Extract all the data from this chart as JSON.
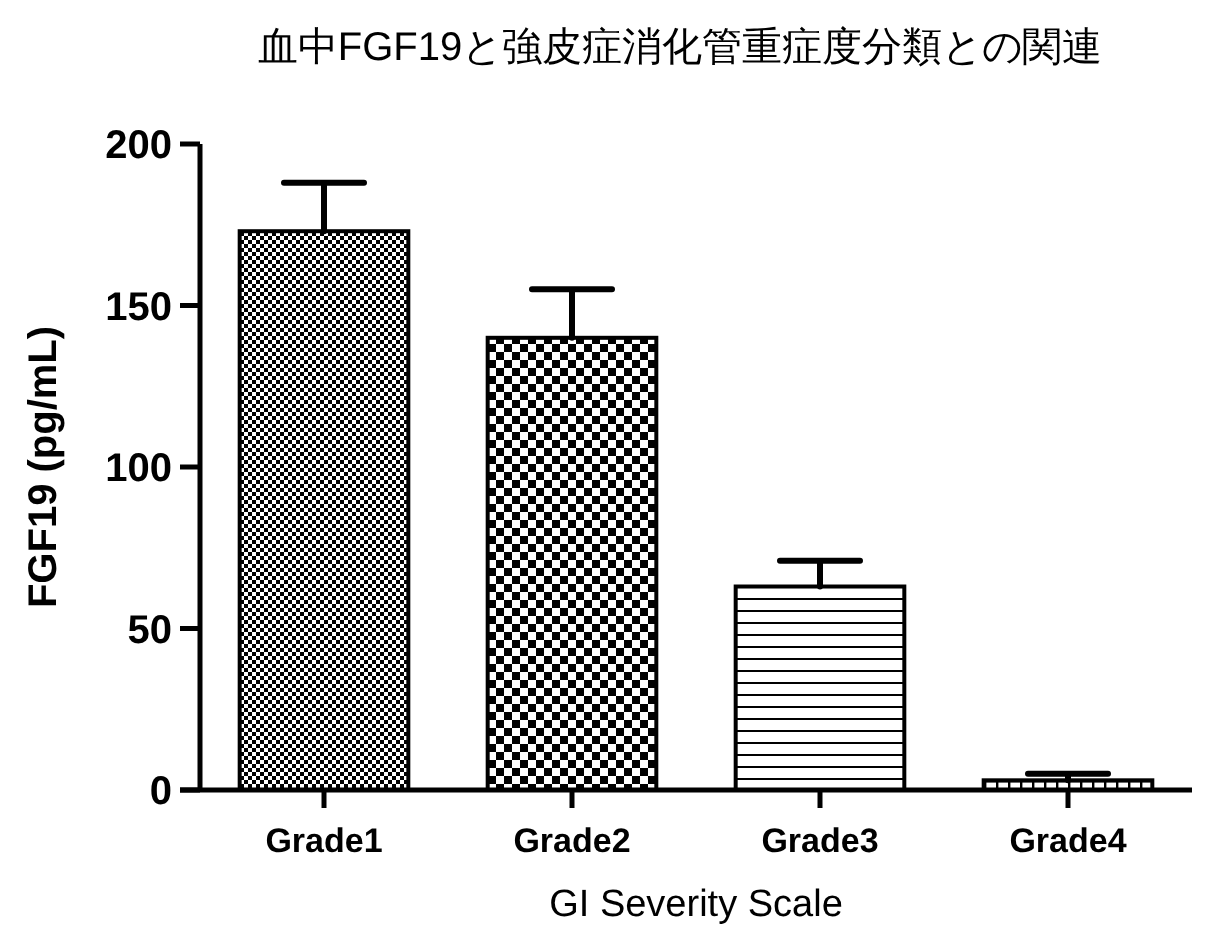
{
  "chart_data": {
    "type": "bar",
    "title": "血中FGF19と強皮症消化管重症度分類との関連",
    "xlabel": "GI Severity Scale",
    "ylabel": "FGF19 (pg/mL)",
    "categories": [
      "Grade1",
      "Grade2",
      "Grade3",
      "Grade4"
    ],
    "values": [
      173,
      140,
      63,
      3
    ],
    "errors": [
      [
        173,
        188
      ],
      [
        140,
        155
      ],
      [
        63,
        71
      ],
      [
        3,
        5
      ]
    ],
    "color": "#000000",
    "ylim": [
      0,
      200
    ],
    "yticks": [
      0,
      50,
      100,
      150,
      200
    ],
    "grid": false
  }
}
